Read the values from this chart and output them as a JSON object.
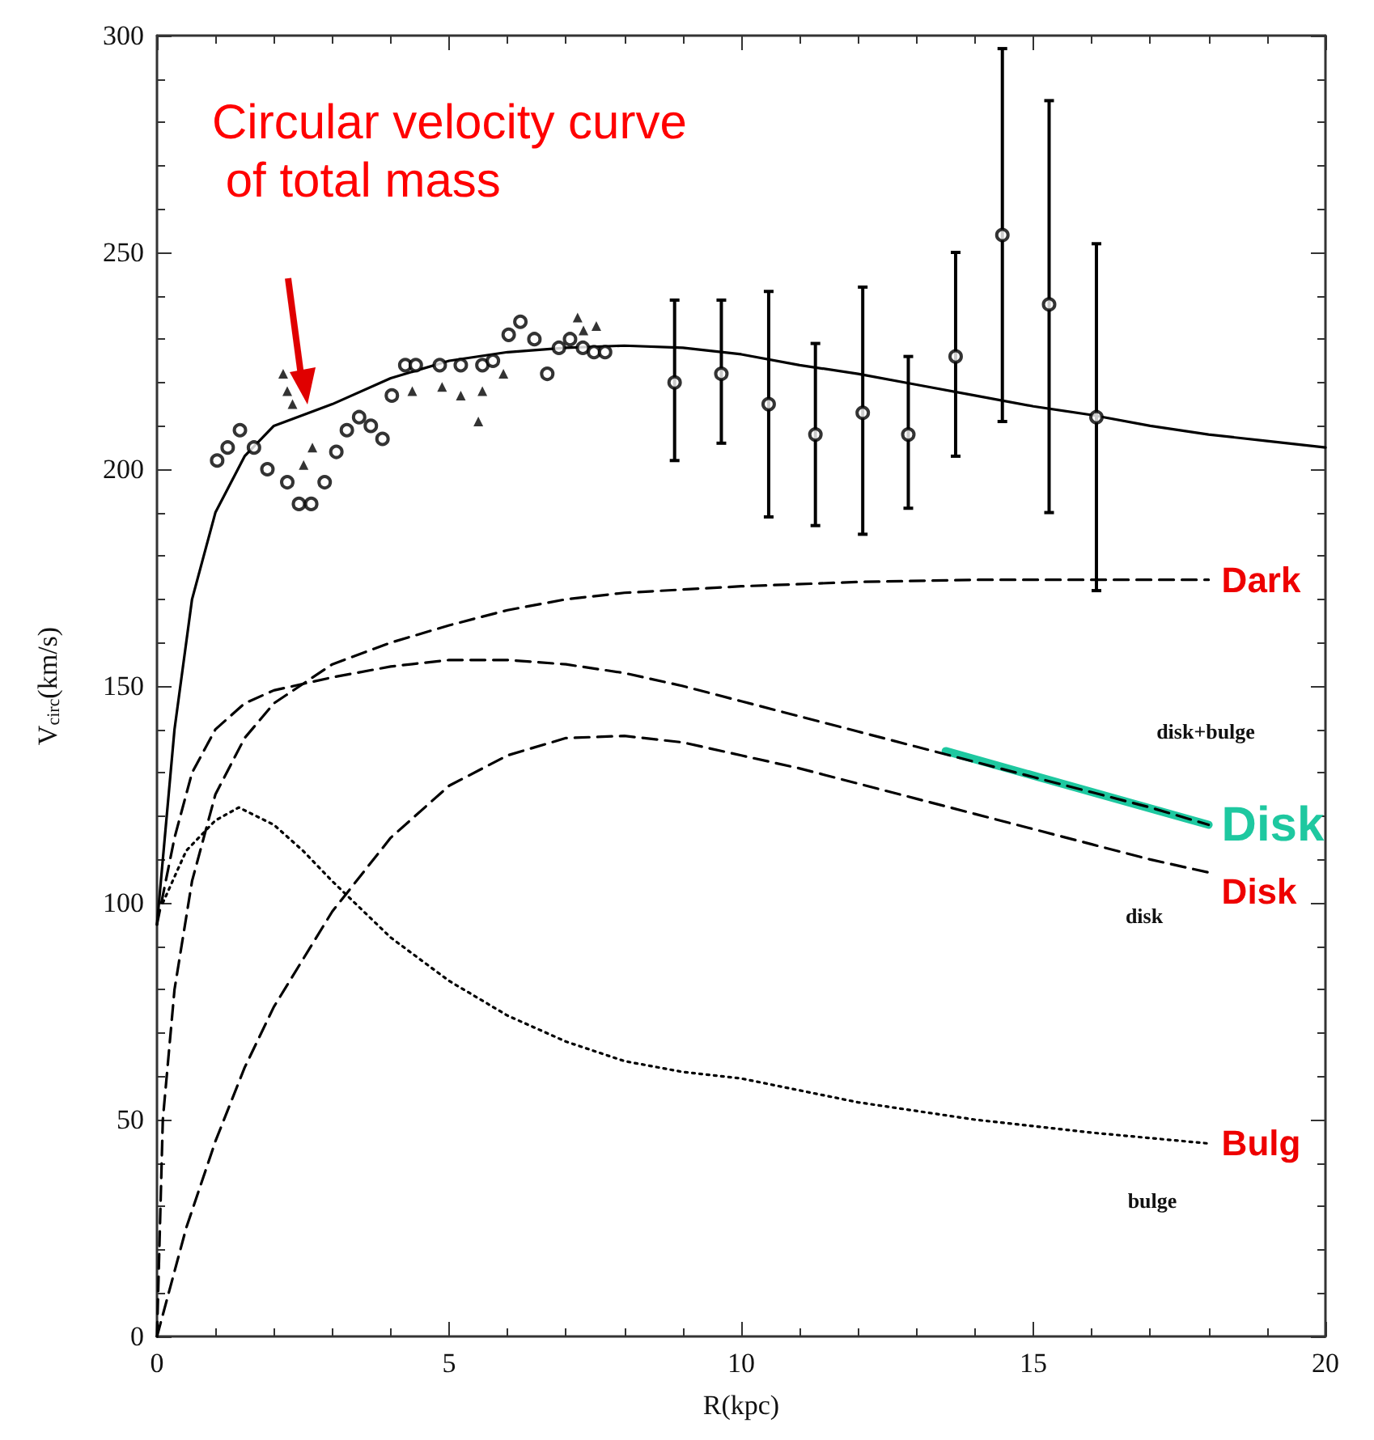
{
  "chart_data": {
    "type": "line",
    "xlabel": "R(kpc)",
    "ylabel": "V$_{circ}$(km/s)",
    "xlim": [
      0,
      20
    ],
    "xticks": [
      0,
      5,
      10,
      15,
      20
    ],
    "ylim": [
      0,
      300
    ],
    "yticks": [
      0,
      50,
      100,
      150,
      200,
      250,
      300
    ],
    "grid": false,
    "legend": false,
    "series": [
      {
        "type": "scatter",
        "marker": "circle",
        "color": "#000000",
        "x": [
          1.03,
          1.21,
          1.42,
          1.66,
          1.89,
          2.23,
          2.43,
          2.64,
          2.87,
          3.07,
          3.25,
          3.46,
          3.66,
          3.86,
          4.02,
          4.25,
          4.43,
          4.84,
          5.2,
          5.57,
          5.75,
          6.02,
          6.22,
          6.46,
          6.68,
          6.88,
          7.07,
          7.29,
          7.48,
          7.67
        ],
        "values": [
          202,
          205,
          209,
          205,
          200,
          197,
          192,
          192,
          197,
          204,
          209,
          212,
          210,
          207,
          217,
          224,
          224,
          224,
          224,
          224,
          225,
          231,
          234,
          230,
          222,
          228,
          230,
          228,
          227,
          227
        ]
      },
      {
        "type": "scatter",
        "marker": "triangle",
        "color": "#000000",
        "x": [
          2.16,
          2.23,
          2.32,
          2.51,
          2.66,
          4.37,
          4.88,
          5.2,
          5.5,
          5.57,
          5.93,
          7.2,
          7.3,
          7.52
        ],
        "values": [
          222,
          218,
          215,
          201,
          205,
          218,
          219,
          217,
          211,
          218,
          222,
          235,
          232,
          233
        ]
      },
      {
        "type": "scatter",
        "marker": "circle",
        "color": "#000000",
        "x": [
          8.86,
          9.66,
          10.47,
          11.27,
          12.08,
          12.86,
          13.67,
          14.47,
          15.27,
          16.08
        ],
        "values": [
          220,
          222,
          215,
          208,
          213,
          208,
          226,
          254,
          238,
          212
        ],
        "errors": [
          [
            202,
            239
          ],
          [
            206,
            239
          ],
          [
            189,
            241
          ],
          [
            187,
            229
          ],
          [
            185,
            242
          ],
          [
            191,
            226
          ],
          [
            203,
            250
          ],
          [
            211,
            297
          ],
          [
            190,
            285
          ],
          [
            172,
            252
          ]
        ]
      },
      {
        "marker": "none",
        "line_style": "solid",
        "color": "#000000",
        "x": [
          0,
          0.3,
          0.6,
          1,
          1.5,
          2,
          3,
          4,
          5,
          6,
          7,
          8,
          9,
          10,
          11,
          12,
          13,
          14,
          15,
          16,
          17,
          18,
          19,
          20
        ],
        "values": [
          95,
          140,
          170,
          190,
          203,
          210,
          215,
          221,
          225,
          227,
          228,
          228.5,
          228,
          226.5,
          224,
          222,
          219.5,
          217,
          214.5,
          212.5,
          210,
          208,
          206.5,
          205
        ]
      },
      {
        "name": "Dark",
        "marker": "none",
        "line_style": "dashed",
        "color": "#000000",
        "x": [
          0,
          0.1,
          0.3,
          0.6,
          1,
          1.5,
          2,
          3,
          4,
          5,
          6,
          7,
          8,
          10,
          12,
          14,
          16,
          18
        ],
        "values": [
          0,
          50,
          80,
          105,
          125,
          138,
          146,
          155,
          160,
          164,
          167.5,
          170,
          171.5,
          173,
          174,
          174.5,
          174.5,
          174.5
        ]
      },
      {
        "marker": "none",
        "line_style": "dashed",
        "color": "#000000",
        "x": [
          0,
          0.3,
          0.6,
          1,
          1.5,
          2,
          3,
          4,
          5,
          6,
          7,
          8,
          9,
          10,
          11,
          12,
          13,
          14,
          15,
          16,
          17,
          18
        ],
        "values": [
          95,
          115,
          130,
          140,
          146,
          149,
          152,
          154.5,
          156,
          156,
          155,
          153,
          150,
          146.5,
          143,
          139.5,
          136,
          132.5,
          129,
          125.5,
          122,
          118
        ]
      },
      {
        "name": "Disk",
        "marker": "none",
        "line_style": "dashed",
        "color": "#000000",
        "x": [
          0,
          0.5,
          1,
          1.5,
          2,
          3,
          4,
          5,
          6,
          7,
          8,
          9,
          10,
          11,
          12,
          13,
          14,
          15,
          16,
          17,
          18
        ],
        "values": [
          0,
          25,
          45,
          62,
          76,
          98,
          115,
          127,
          134,
          138,
          138.5,
          137,
          134,
          131,
          127.5,
          124,
          120.5,
          117,
          113.5,
          110,
          107
        ]
      },
      {
        "name": "Bulg",
        "marker": "none",
        "line_style": "dotted",
        "color": "#000000",
        "x": [
          0.1,
          0.5,
          1,
          1.4,
          2,
          2.5,
          3,
          4,
          5,
          6,
          7,
          8,
          9,
          10,
          12,
          14,
          16,
          18
        ],
        "values": [
          100,
          112,
          119,
          122,
          118,
          112,
          105,
          92,
          82,
          74,
          68,
          63.5,
          61,
          59.5,
          54,
          50,
          47,
          44.5
        ]
      },
      {
        "name": "Disk",
        "marker": "none",
        "line_style": "solid",
        "color": "#1ec8a0",
        "x": [
          13.5,
          18
        ],
        "values": [
          135,
          118
        ]
      }
    ],
    "annotations": [
      "Circular velocity curve of total mass",
      "disk+bulge",
      "disk",
      "bulge"
    ]
  }
}
